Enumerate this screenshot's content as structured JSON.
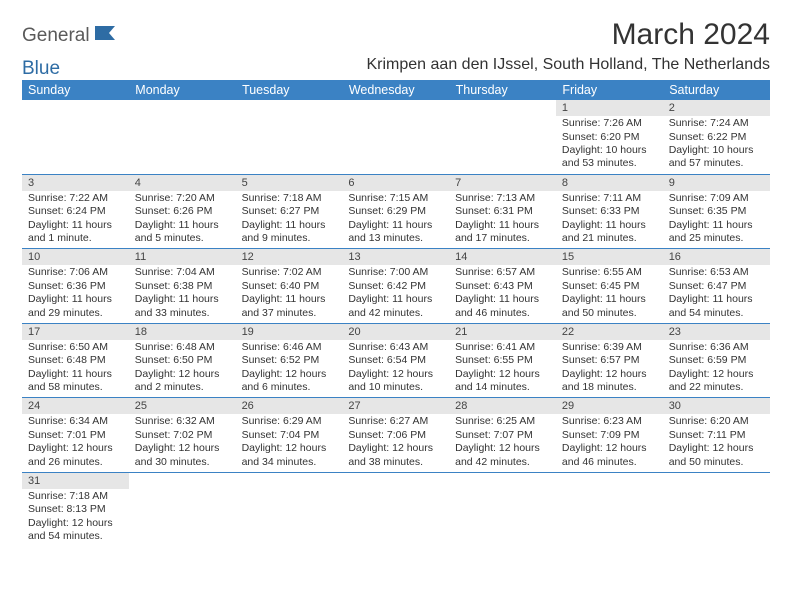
{
  "logo": {
    "text1": "General",
    "text2": "Blue"
  },
  "title": "March 2024",
  "subtitle": "Krimpen aan den IJssel, South Holland, The Netherlands",
  "colors": {
    "header_bg": "#3b82c4",
    "header_text": "#ffffff",
    "daynum_bg": "#e6e6e6",
    "cell_border": "#3b82c4",
    "body_text": "#333333",
    "logo_gray": "#5a5a5a",
    "logo_blue": "#2e6ca4"
  },
  "weekdays": [
    "Sunday",
    "Monday",
    "Tuesday",
    "Wednesday",
    "Thursday",
    "Friday",
    "Saturday"
  ],
  "weeks": [
    [
      null,
      null,
      null,
      null,
      null,
      {
        "n": "1",
        "sr": "7:26 AM",
        "ss": "6:20 PM",
        "dl": "10 hours and 53 minutes."
      },
      {
        "n": "2",
        "sr": "7:24 AM",
        "ss": "6:22 PM",
        "dl": "10 hours and 57 minutes."
      }
    ],
    [
      {
        "n": "3",
        "sr": "7:22 AM",
        "ss": "6:24 PM",
        "dl": "11 hours and 1 minute."
      },
      {
        "n": "4",
        "sr": "7:20 AM",
        "ss": "6:26 PM",
        "dl": "11 hours and 5 minutes."
      },
      {
        "n": "5",
        "sr": "7:18 AM",
        "ss": "6:27 PM",
        "dl": "11 hours and 9 minutes."
      },
      {
        "n": "6",
        "sr": "7:15 AM",
        "ss": "6:29 PM",
        "dl": "11 hours and 13 minutes."
      },
      {
        "n": "7",
        "sr": "7:13 AM",
        "ss": "6:31 PM",
        "dl": "11 hours and 17 minutes."
      },
      {
        "n": "8",
        "sr": "7:11 AM",
        "ss": "6:33 PM",
        "dl": "11 hours and 21 minutes."
      },
      {
        "n": "9",
        "sr": "7:09 AM",
        "ss": "6:35 PM",
        "dl": "11 hours and 25 minutes."
      }
    ],
    [
      {
        "n": "10",
        "sr": "7:06 AM",
        "ss": "6:36 PM",
        "dl": "11 hours and 29 minutes."
      },
      {
        "n": "11",
        "sr": "7:04 AM",
        "ss": "6:38 PM",
        "dl": "11 hours and 33 minutes."
      },
      {
        "n": "12",
        "sr": "7:02 AM",
        "ss": "6:40 PM",
        "dl": "11 hours and 37 minutes."
      },
      {
        "n": "13",
        "sr": "7:00 AM",
        "ss": "6:42 PM",
        "dl": "11 hours and 42 minutes."
      },
      {
        "n": "14",
        "sr": "6:57 AM",
        "ss": "6:43 PM",
        "dl": "11 hours and 46 minutes."
      },
      {
        "n": "15",
        "sr": "6:55 AM",
        "ss": "6:45 PM",
        "dl": "11 hours and 50 minutes."
      },
      {
        "n": "16",
        "sr": "6:53 AM",
        "ss": "6:47 PM",
        "dl": "11 hours and 54 minutes."
      }
    ],
    [
      {
        "n": "17",
        "sr": "6:50 AM",
        "ss": "6:48 PM",
        "dl": "11 hours and 58 minutes."
      },
      {
        "n": "18",
        "sr": "6:48 AM",
        "ss": "6:50 PM",
        "dl": "12 hours and 2 minutes."
      },
      {
        "n": "19",
        "sr": "6:46 AM",
        "ss": "6:52 PM",
        "dl": "12 hours and 6 minutes."
      },
      {
        "n": "20",
        "sr": "6:43 AM",
        "ss": "6:54 PM",
        "dl": "12 hours and 10 minutes."
      },
      {
        "n": "21",
        "sr": "6:41 AM",
        "ss": "6:55 PM",
        "dl": "12 hours and 14 minutes."
      },
      {
        "n": "22",
        "sr": "6:39 AM",
        "ss": "6:57 PM",
        "dl": "12 hours and 18 minutes."
      },
      {
        "n": "23",
        "sr": "6:36 AM",
        "ss": "6:59 PM",
        "dl": "12 hours and 22 minutes."
      }
    ],
    [
      {
        "n": "24",
        "sr": "6:34 AM",
        "ss": "7:01 PM",
        "dl": "12 hours and 26 minutes."
      },
      {
        "n": "25",
        "sr": "6:32 AM",
        "ss": "7:02 PM",
        "dl": "12 hours and 30 minutes."
      },
      {
        "n": "26",
        "sr": "6:29 AM",
        "ss": "7:04 PM",
        "dl": "12 hours and 34 minutes."
      },
      {
        "n": "27",
        "sr": "6:27 AM",
        "ss": "7:06 PM",
        "dl": "12 hours and 38 minutes."
      },
      {
        "n": "28",
        "sr": "6:25 AM",
        "ss": "7:07 PM",
        "dl": "12 hours and 42 minutes."
      },
      {
        "n": "29",
        "sr": "6:23 AM",
        "ss": "7:09 PM",
        "dl": "12 hours and 46 minutes."
      },
      {
        "n": "30",
        "sr": "6:20 AM",
        "ss": "7:11 PM",
        "dl": "12 hours and 50 minutes."
      }
    ],
    [
      {
        "n": "31",
        "sr": "7:18 AM",
        "ss": "8:13 PM",
        "dl": "12 hours and 54 minutes."
      },
      null,
      null,
      null,
      null,
      null,
      null
    ]
  ],
  "labels": {
    "sunrise": "Sunrise:",
    "sunset": "Sunset:",
    "daylight": "Daylight:"
  }
}
